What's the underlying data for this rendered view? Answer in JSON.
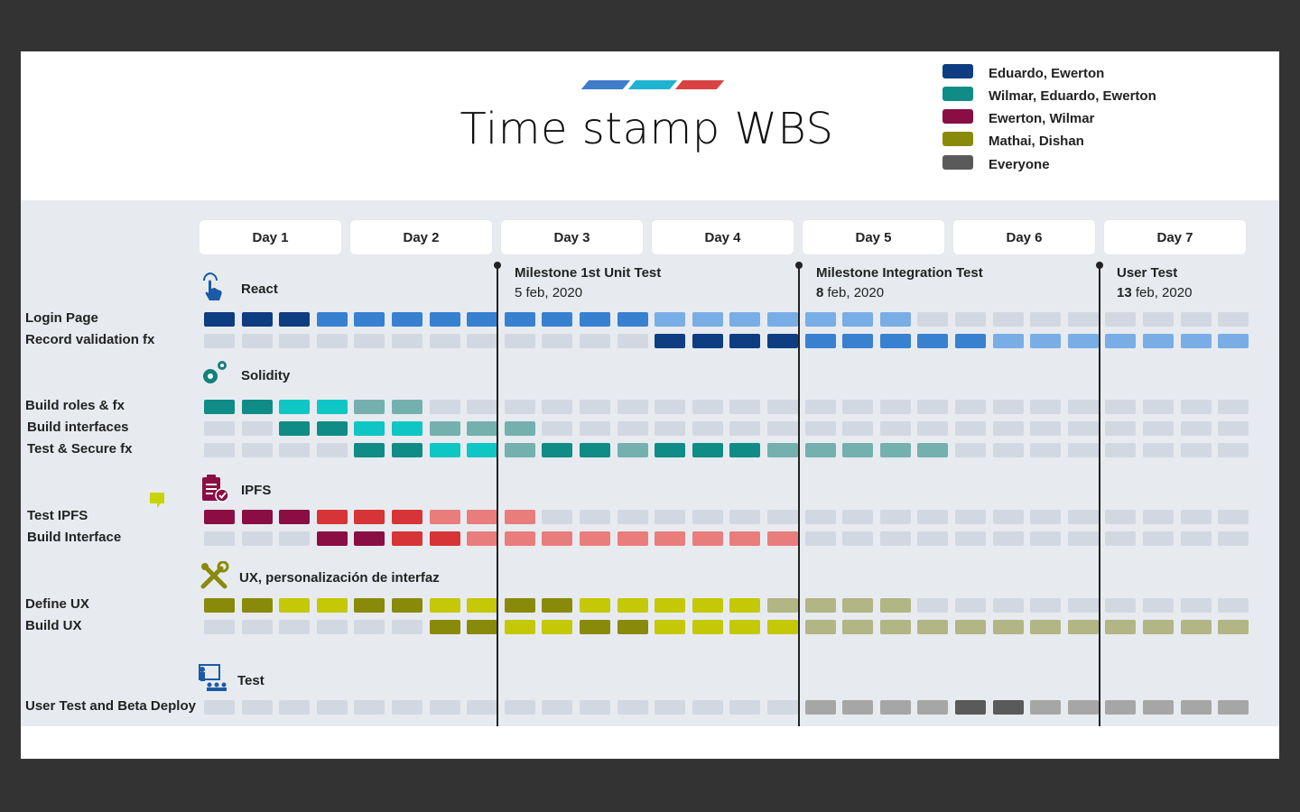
{
  "title": "Time stamp WBS",
  "accent_colors": [
    "#3f7cc9",
    "#1fb3d1",
    "#d94243"
  ],
  "legend": [
    {
      "label": "Eduardo, Ewerton",
      "color": "#0f3d82"
    },
    {
      "label": "Wilmar, Eduardo, Ewerton",
      "color": "#0f8c86"
    },
    {
      "label": "Ewerton, Wilmar",
      "color": "#8a0e44"
    },
    {
      "label": "Mathai, Dishan",
      "color": "#8a8a0a"
    },
    {
      "label": "Everyone",
      "color": "#5a5a5a"
    }
  ],
  "days": [
    "Day 1",
    "Day 2",
    "Day 3",
    "Day 4",
    "Day 5",
    "Day 6",
    "Day 7"
  ],
  "milestones": [
    {
      "name": "Milestone 1st Unit Test",
      "day_bold": "",
      "date_rest": "5 feb, 2020",
      "after_slot": 8
    },
    {
      "name": "Milestone Integration Test",
      "day_bold": "8",
      "date_rest": " feb, 2020",
      "after_slot": 16
    },
    {
      "name": "User Test",
      "day_bold": "13",
      "date_rest": " feb, 2020",
      "after_slot": 24
    }
  ],
  "palette": {
    "0": "#d2d8e2",
    "b1": "#0f3d82",
    "b2": "#3880d0",
    "b3": "#79ade5",
    "t1": "#0f8c86",
    "t2": "#0ec6c4",
    "t3": "#74b0ae",
    "r1": "#8a0e44",
    "r2": "#d63436",
    "r3": "#e97d7c",
    "o1": "#8a8a0a",
    "o2": "#c4c806",
    "o3": "#b2b584",
    "g1": "#5a5a5a",
    "g2": "#a6a6a6"
  },
  "sections": [
    {
      "title": "React",
      "icon": "touch-icon",
      "rows": [
        {
          "label": "Login Page",
          "cells": [
            "b1",
            "b1",
            "b1",
            "b2",
            "b2",
            "b2",
            "b2",
            "b2",
            "b2",
            "b2",
            "b2",
            "b2",
            "b3",
            "b3",
            "b3",
            "b3",
            "b3",
            "b3",
            "b3",
            "0",
            "0",
            "0",
            "0",
            "0",
            "0",
            "0",
            "0",
            "0"
          ]
        },
        {
          "label": "Record validation fx",
          "cells": [
            "0",
            "0",
            "0",
            "0",
            "0",
            "0",
            "0",
            "0",
            "0",
            "0",
            "0",
            "0",
            "b1",
            "b1",
            "b1",
            "b1",
            "b2",
            "b2",
            "b2",
            "b2",
            "b2",
            "b3",
            "b3",
            "b3",
            "b3",
            "b3",
            "b3",
            "b3"
          ]
        }
      ]
    },
    {
      "title": "Solidity",
      "icon": "gears-icon",
      "rows": [
        {
          "label": "Build roles & fx",
          "cells": [
            "t1",
            "t1",
            "t2",
            "t2",
            "t3",
            "t3",
            "0",
            "0",
            "0",
            "0",
            "0",
            "0",
            "0",
            "0",
            "0",
            "0",
            "0",
            "0",
            "0",
            "0",
            "0",
            "0",
            "0",
            "0",
            "0",
            "0",
            "0",
            "0"
          ]
        },
        {
          "label": "Build interfaces",
          "cells": [
            "0",
            "0",
            "t1",
            "t1",
            "t2",
            "t2",
            "t3",
            "t3",
            "t3",
            "0",
            "0",
            "0",
            "0",
            "0",
            "0",
            "0",
            "0",
            "0",
            "0",
            "0",
            "0",
            "0",
            "0",
            "0",
            "0",
            "0",
            "0",
            "0"
          ]
        },
        {
          "label": "Test & Secure fx",
          "cells": [
            "0",
            "0",
            "0",
            "0",
            "t1",
            "t1",
            "t2",
            "t2",
            "t3",
            "t1",
            "t1",
            "t3",
            "t1",
            "t1",
            "t1",
            "t3",
            "t3",
            "t3",
            "t3",
            "t3",
            "0",
            "0",
            "0",
            "0",
            "0",
            "0",
            "0",
            "0"
          ]
        }
      ]
    },
    {
      "title": "IPFS",
      "icon": "clipboard-check-icon",
      "rows": [
        {
          "label": "Test IPFS",
          "cells": [
            "r1",
            "r1",
            "r1",
            "r2",
            "r2",
            "r2",
            "r3",
            "r3",
            "r3",
            "0",
            "0",
            "0",
            "0",
            "0",
            "0",
            "0",
            "0",
            "0",
            "0",
            "0",
            "0",
            "0",
            "0",
            "0",
            "0",
            "0",
            "0",
            "0"
          ]
        },
        {
          "label": "Build Interface",
          "cells": [
            "0",
            "0",
            "0",
            "r1",
            "r1",
            "r2",
            "r2",
            "r3",
            "r3",
            "r3",
            "r3",
            "r3",
            "r3",
            "r3",
            "r3",
            "r3",
            "0",
            "0",
            "0",
            "0",
            "0",
            "0",
            "0",
            "0",
            "0",
            "0",
            "0",
            "0"
          ]
        }
      ]
    },
    {
      "title": "UX, personalización de interfaz",
      "icon": "tools-icon",
      "rows": [
        {
          "label": "Define UX",
          "cells": [
            "o1",
            "o1",
            "o2",
            "o2",
            "o1",
            "o1",
            "o2",
            "o2",
            "o1",
            "o1",
            "o2",
            "o2",
            "o2",
            "o2",
            "o2",
            "o3",
            "o3",
            "o3",
            "o3",
            "0",
            "0",
            "0",
            "0",
            "0",
            "0",
            "0",
            "0",
            "0"
          ]
        },
        {
          "label": "Build UX",
          "cells": [
            "0",
            "0",
            "0",
            "0",
            "0",
            "0",
            "o1",
            "o1",
            "o2",
            "o2",
            "o1",
            "o1",
            "o2",
            "o2",
            "o2",
            "o2",
            "o3",
            "o3",
            "o3",
            "o3",
            "o3",
            "o3",
            "o3",
            "o3",
            "o3",
            "o3",
            "o3",
            "o3"
          ]
        }
      ]
    },
    {
      "title": "Test",
      "icon": "presentation-icon",
      "rows": [
        {
          "label": "User Test and Beta Deploy",
          "cells": [
            "0",
            "0",
            "0",
            "0",
            "0",
            "0",
            "0",
            "0",
            "0",
            "0",
            "0",
            "0",
            "0",
            "0",
            "0",
            "0",
            "g2",
            "g2",
            "g2",
            "g2",
            "g1",
            "g1",
            "g2",
            "g2",
            "g2",
            "g2",
            "g2",
            "g2"
          ]
        }
      ]
    }
  ]
}
